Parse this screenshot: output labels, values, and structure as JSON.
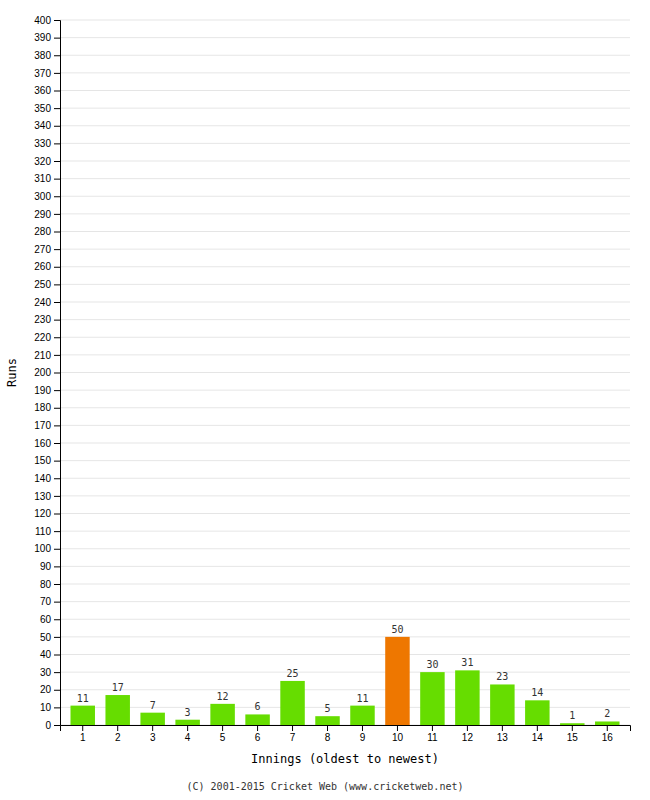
{
  "chart_data": {
    "type": "bar",
    "categories": [
      "1",
      "2",
      "3",
      "4",
      "5",
      "6",
      "7",
      "8",
      "9",
      "10",
      "11",
      "12",
      "13",
      "14",
      "15",
      "16"
    ],
    "values": [
      11,
      17,
      7,
      3,
      12,
      6,
      25,
      5,
      11,
      50,
      30,
      31,
      23,
      14,
      1,
      2
    ],
    "colors": [
      "#66dd00",
      "#66dd00",
      "#66dd00",
      "#66dd00",
      "#66dd00",
      "#66dd00",
      "#66dd00",
      "#66dd00",
      "#66dd00",
      "#ee7700",
      "#66dd00",
      "#66dd00",
      "#66dd00",
      "#66dd00",
      "#66dd00",
      "#66dd00"
    ],
    "x_label": "Innings (oldest to newest)",
    "y_label": "Runs",
    "ylim": [
      0,
      400
    ],
    "yticks": [
      0,
      10,
      20,
      30,
      40,
      50,
      60,
      70,
      80,
      90,
      100,
      110,
      120,
      130,
      140,
      150,
      160,
      170,
      180,
      190,
      200,
      210,
      220,
      230,
      240,
      250,
      260,
      270,
      280,
      290,
      300,
      310,
      320,
      330,
      340,
      350,
      360,
      370,
      380,
      390,
      400
    ],
    "grid": true,
    "data_labels": true,
    "annotations": [
      "(C) 2001-2015 Cricket Web (www.cricketweb.net)"
    ]
  }
}
